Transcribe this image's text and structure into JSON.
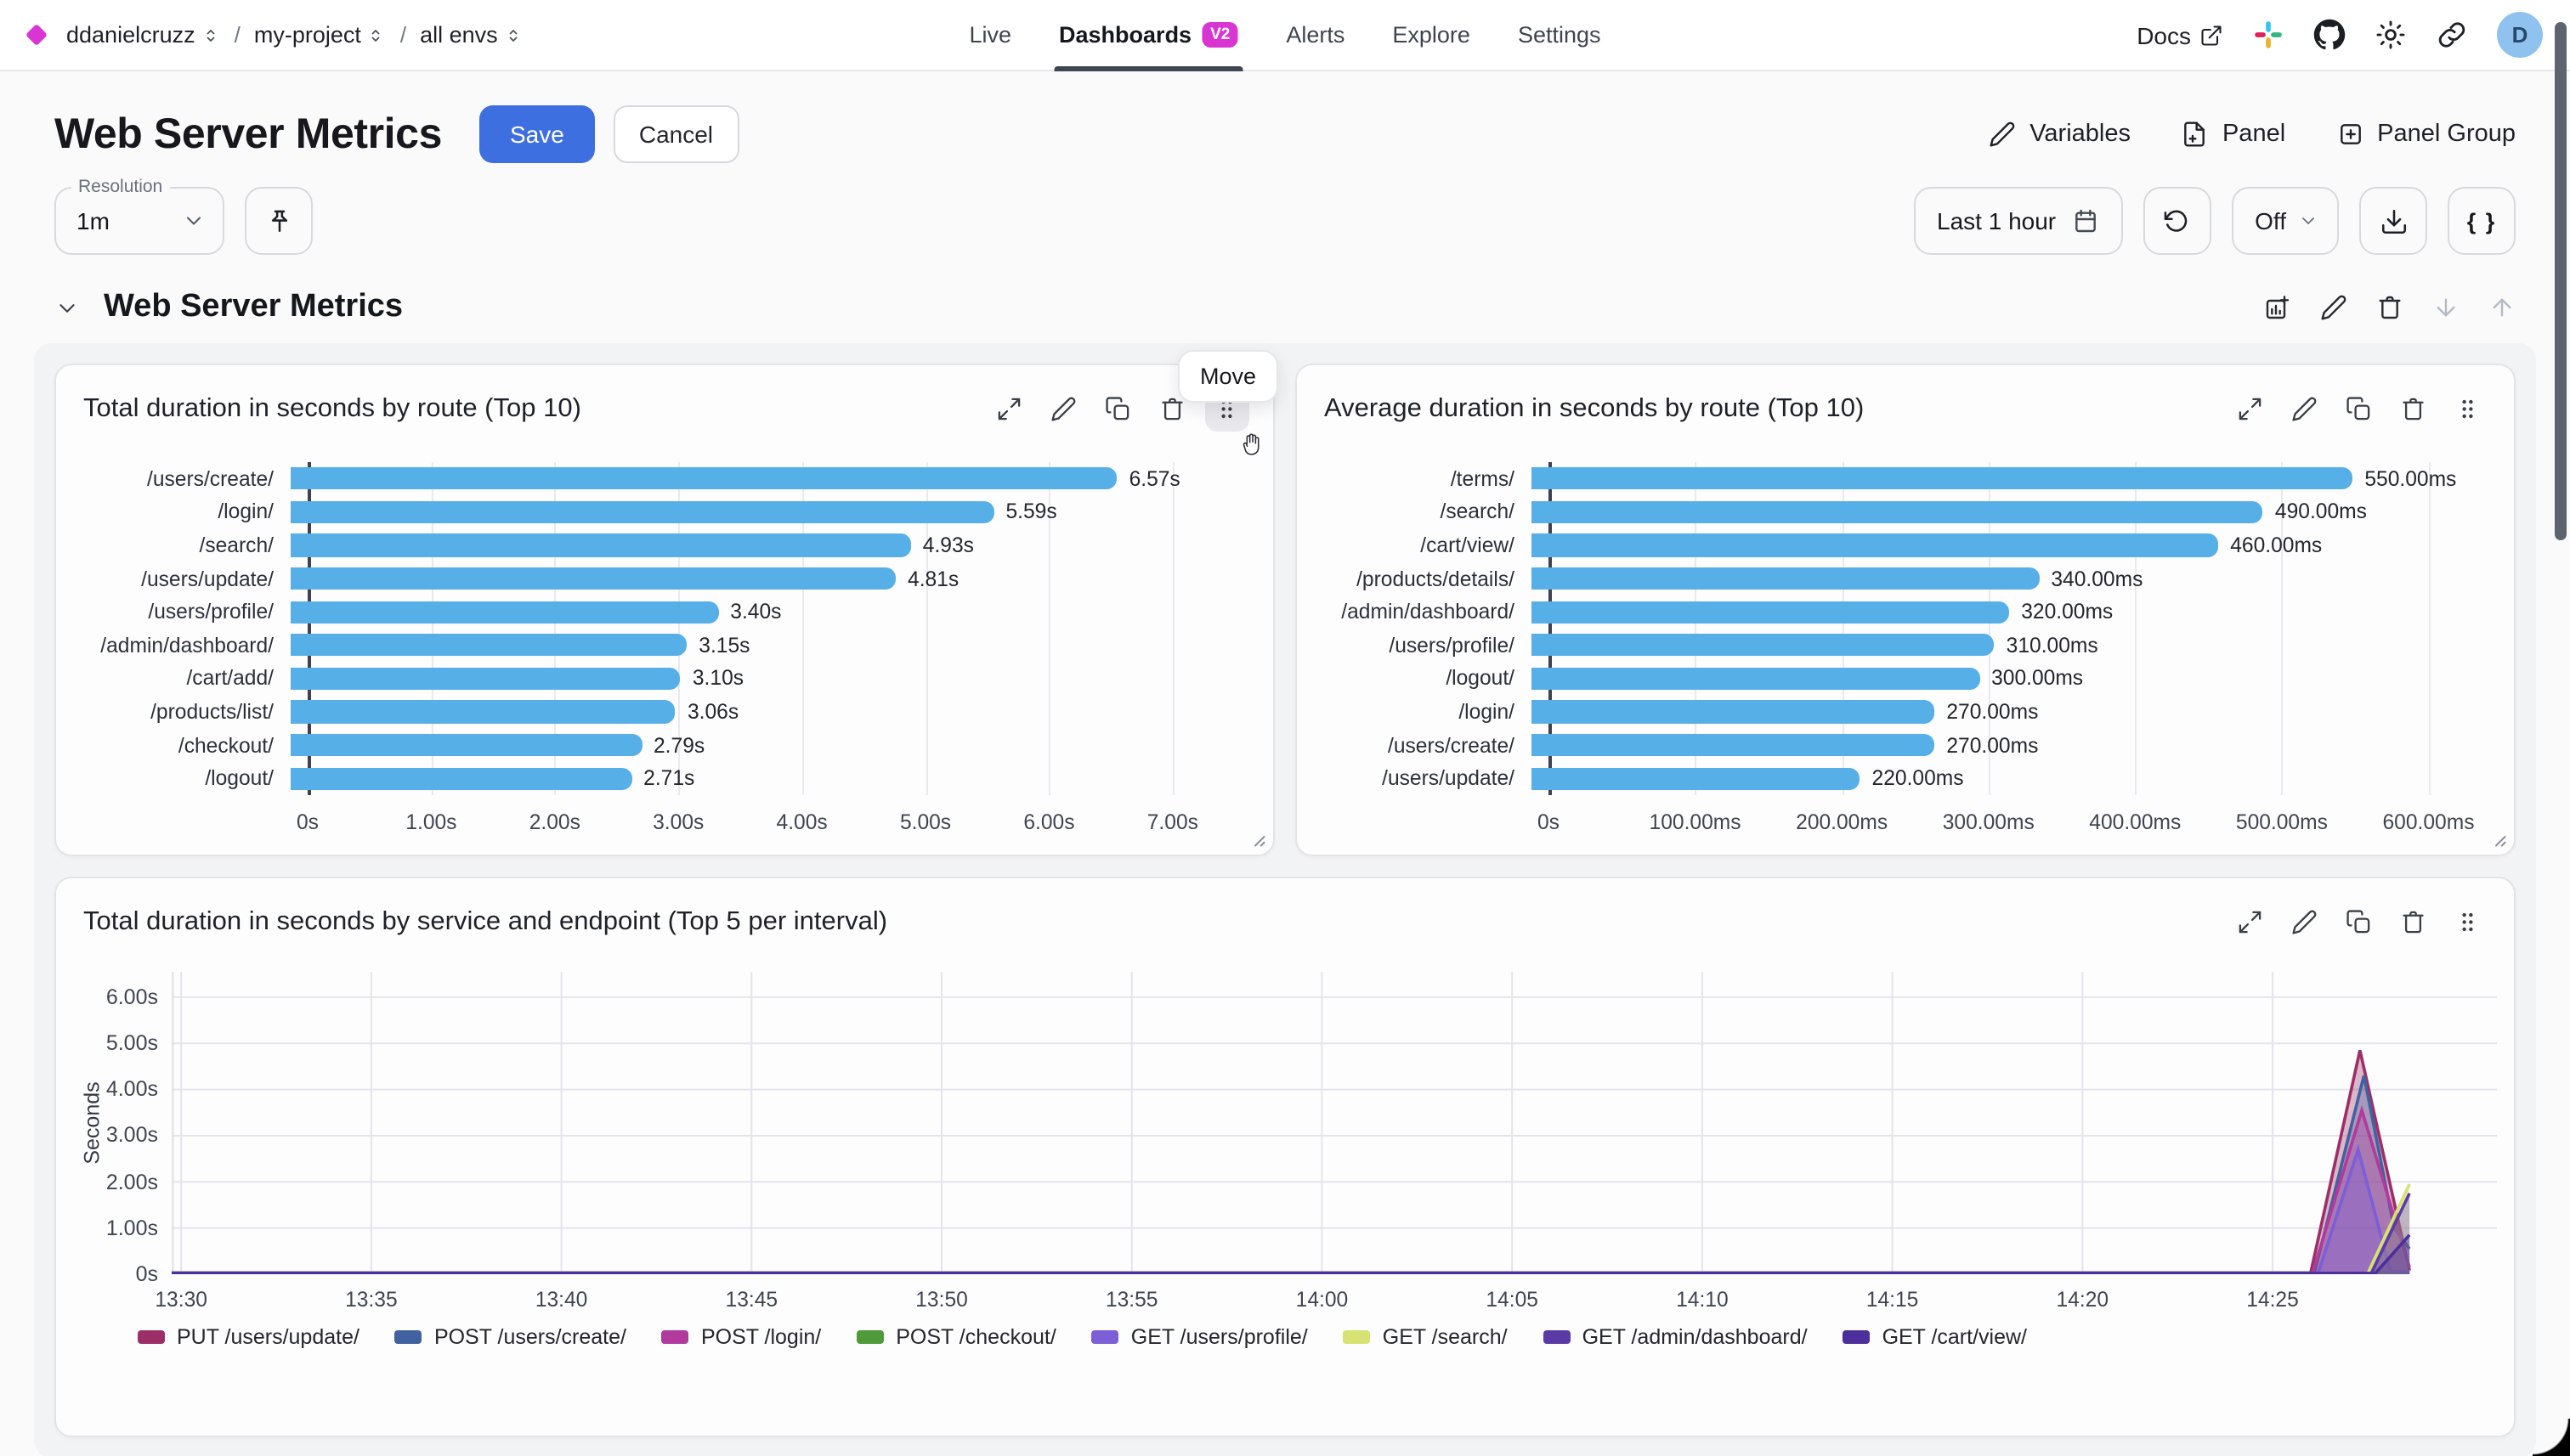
{
  "topbar": {
    "org": "ddanielcruzz",
    "project": "my-project",
    "env": "all envs",
    "separator": "/",
    "nav": [
      {
        "label": "Live",
        "active": false
      },
      {
        "label": "Dashboards",
        "active": true,
        "badge": "V2"
      },
      {
        "label": "Alerts",
        "active": false
      },
      {
        "label": "Explore",
        "active": false
      },
      {
        "label": "Settings",
        "active": false
      }
    ],
    "docs_label": "Docs",
    "avatar_initial": "D"
  },
  "header": {
    "title": "Web Server Metrics",
    "save_label": "Save",
    "cancel_label": "Cancel",
    "variables_label": "Variables",
    "panel_label": "Panel",
    "panel_group_label": "Panel Group"
  },
  "toolbar": {
    "resolution_label": "Resolution",
    "resolution_value": "1m",
    "time_range": "Last 1 hour",
    "refresh_value": "Off",
    "braces_label": "{ }"
  },
  "section": {
    "title": "Web Server Metrics",
    "move_tooltip": "Move"
  },
  "panel_actions": [
    "expand",
    "edit",
    "duplicate",
    "delete",
    "drag"
  ],
  "colors": {
    "brand_magenta": "#d935d3",
    "save_blue": "#3e6fe1",
    "bar_blue": "#57afe8",
    "nav_underline": "#3e4654",
    "avatar_bg": "#90c2ef"
  },
  "chart_data": [
    {
      "id": "total-duration-by-route",
      "type": "bar",
      "orientation": "horizontal",
      "title": "Total duration in seconds by route (Top 10)",
      "categories": [
        "/users/create/",
        "/login/",
        "/search/",
        "/users/update/",
        "/users/profile/",
        "/admin/dashboard/",
        "/cart/add/",
        "/products/list/",
        "/checkout/",
        "/logout/"
      ],
      "values": [
        6.57,
        5.59,
        4.93,
        4.81,
        3.4,
        3.15,
        3.1,
        3.06,
        2.79,
        2.71
      ],
      "value_labels": [
        "6.57s",
        "5.59s",
        "4.93s",
        "4.81s",
        "3.40s",
        "3.15s",
        "3.10s",
        "3.06s",
        "2.79s",
        "2.71s"
      ],
      "xticks": [
        "0s",
        "1.00s",
        "2.00s",
        "3.00s",
        "4.00s",
        "5.00s",
        "6.00s",
        "7.00s"
      ],
      "tick_values": [
        0,
        1,
        2,
        3,
        4,
        5,
        6,
        7
      ],
      "axis_max": 7.62,
      "xlim": [
        0,
        7.62
      ],
      "grid": true,
      "bar_color": "#57afe8"
    },
    {
      "id": "average-duration-by-route",
      "type": "bar",
      "orientation": "horizontal",
      "title": "Average duration in seconds by route (Top 10)",
      "categories": [
        "/terms/",
        "/search/",
        "/cart/view/",
        "/products/details/",
        "/admin/dashboard/",
        "/users/profile/",
        "/logout/",
        "/login/",
        "/users/create/",
        "/users/update/"
      ],
      "values": [
        550,
        490,
        460,
        340,
        320,
        310,
        300,
        270,
        270,
        220
      ],
      "value_labels": [
        "550.00ms",
        "490.00ms",
        "460.00ms",
        "340.00ms",
        "320.00ms",
        "310.00ms",
        "300.00ms",
        "270.00ms",
        "270.00ms",
        "220.00ms"
      ],
      "xticks": [
        "0s",
        "100.00ms",
        "200.00ms",
        "300.00ms",
        "400.00ms",
        "500.00ms",
        "600.00ms"
      ],
      "tick_values": [
        0,
        100,
        200,
        300,
        400,
        500,
        600
      ],
      "axis_max": 642,
      "xlim": [
        0,
        642
      ],
      "grid": true,
      "bar_color": "#57afe8"
    },
    {
      "id": "total-duration-by-service-endpoint",
      "type": "area",
      "title": "Total duration in seconds by service and endpoint (Top 5 per interval)",
      "ylabel": "Seconds",
      "yticks": [
        "0s",
        "1.00s",
        "2.00s",
        "3.00s",
        "4.00s",
        "5.00s",
        "6.00s"
      ],
      "ytick_values": [
        0,
        1,
        2,
        3,
        4,
        5,
        6
      ],
      "ylim": [
        0,
        6.55
      ],
      "xticks": [
        "13:30",
        "13:35",
        "13:40",
        "13:45",
        "13:50",
        "13:55",
        "14:00",
        "14:05",
        "14:10",
        "14:15",
        "14:20",
        "14:25"
      ],
      "xtick_minutes": [
        0,
        5,
        10,
        15,
        20,
        25,
        30,
        35,
        40,
        45,
        50,
        55
      ],
      "x_domain_minutes": [
        -0.25,
        60.9
      ],
      "grid": true,
      "legend_position": "bottom",
      "series": [
        {
          "name": "PUT /users/update/",
          "color": "#9c2f68",
          "points": [
            [
              -0.25,
              0.03
            ],
            [
              56.0,
              0.03
            ],
            [
              57.3,
              4.85
            ],
            [
              58.6,
              0.08
            ]
          ]
        },
        {
          "name": "POST /users/create/",
          "color": "#41629e",
          "points": [
            [
              -0.25,
              0.03
            ],
            [
              56.1,
              0.03
            ],
            [
              57.4,
              4.3
            ],
            [
              58.2,
              1.0
            ],
            [
              58.6,
              0.55
            ]
          ]
        },
        {
          "name": "POST /login/",
          "color": "#b13a9d",
          "points": [
            [
              -0.25,
              0.02
            ],
            [
              56.05,
              0.02
            ],
            [
              57.35,
              3.55
            ],
            [
              58.6,
              0.15
            ]
          ]
        },
        {
          "name": "POST /checkout/",
          "color": "#4f9a3b",
          "points": [
            [
              -0.25,
              0.02
            ],
            [
              58.6,
              0.02
            ]
          ]
        },
        {
          "name": "GET /users/profile/",
          "color": "#7c5ed6",
          "points": [
            [
              -0.25,
              0.02
            ],
            [
              56.2,
              0.02
            ],
            [
              57.25,
              2.7
            ],
            [
              58.1,
              0.06
            ],
            [
              58.6,
              0.05
            ]
          ]
        },
        {
          "name": "GET /search/",
          "color": "#d6e272",
          "points": [
            [
              -0.25,
              0.01
            ],
            [
              57.5,
              0.01
            ],
            [
              58.6,
              1.95
            ]
          ]
        },
        {
          "name": "GET /admin/dashboard/",
          "color": "#5a3aa5",
          "points": [
            [
              -0.25,
              0.02
            ],
            [
              57.6,
              0.02
            ],
            [
              58.6,
              1.75
            ]
          ]
        },
        {
          "name": "GET /cart/view/",
          "color": "#4c2f9b",
          "points": [
            [
              -0.25,
              0.02
            ],
            [
              57.7,
              0.02
            ],
            [
              58.6,
              0.85
            ]
          ]
        }
      ]
    }
  ]
}
